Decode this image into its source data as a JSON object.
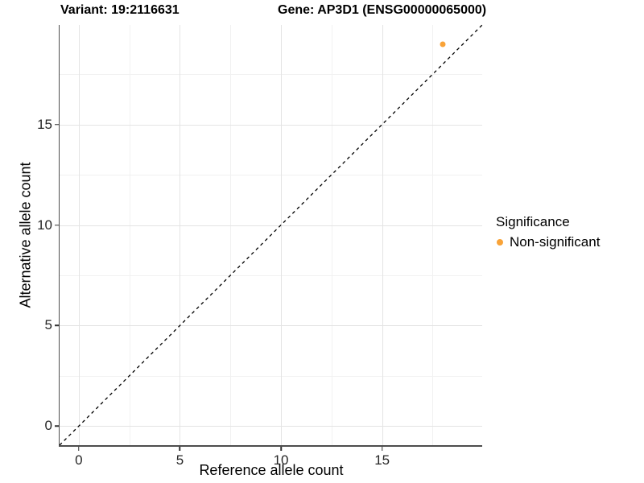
{
  "titles": {
    "left": "Variant: 19:2116631",
    "right": "Gene: AP3D1 (ENSG00000065000)"
  },
  "chart_data": {
    "type": "scatter",
    "xlabel": "Reference allele count",
    "ylabel": "Alternative allele count",
    "xlim": [
      -0.95,
      19.95
    ],
    "ylim": [
      -0.95,
      19.95
    ],
    "x_major_ticks": [
      0,
      5,
      10,
      15
    ],
    "x_minor_ticks": [
      2.5,
      7.5,
      12.5,
      17.5
    ],
    "y_major_ticks": [
      0,
      5,
      10,
      15
    ],
    "y_minor_ticks": [
      2.5,
      7.5,
      12.5,
      17.5
    ],
    "grid": true,
    "reference_line": {
      "type": "identity",
      "slope": 1,
      "intercept": 0,
      "style": "dashed",
      "color": "#000000"
    },
    "series": [
      {
        "name": "Non-significant",
        "color": "#F9A338",
        "point_size": 7,
        "points": [
          {
            "x": 18,
            "y": 19
          }
        ]
      }
    ],
    "legend": {
      "title": "Significance",
      "position": "right",
      "entries": [
        {
          "label": "Non-significant",
          "color": "#F9A338"
        }
      ]
    }
  },
  "colors": {
    "grid_major": "#E4E4E4",
    "grid_minor": "#F1F1F1",
    "axis_line": "#4D4D4D",
    "tick": "#333333"
  }
}
